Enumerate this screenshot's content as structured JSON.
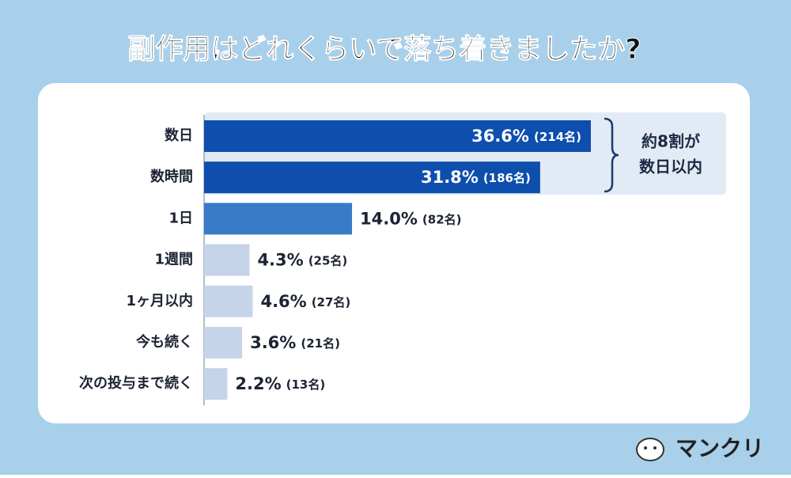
{
  "chart_data": {
    "type": "bar",
    "orientation": "horizontal",
    "title": "副作用はどれくらいで落ち着きましたか?",
    "categories": [
      "数日",
      "数時間",
      "1日",
      "1週間",
      "1ヶ月以内",
      "今も続く",
      "次の投与まで続く"
    ],
    "values": [
      36.6,
      31.8,
      14.0,
      4.3,
      4.6,
      3.6,
      2.2
    ],
    "value_labels": [
      "36.6%",
      "31.8%",
      "14.0%",
      "4.3%",
      "4.6%",
      "3.6%",
      "2.2%"
    ],
    "count_labels": [
      "(214名)",
      "(186名)",
      "(82名)",
      "(25名)",
      "(27名)",
      "(21名)",
      "(13名)"
    ],
    "colors": [
      "#0e4fae",
      "#0e4fae",
      "#3a7bc8",
      "#c6d4e9",
      "#c6d4e9",
      "#c6d4e9",
      "#c6d4e9"
    ],
    "annotation": [
      "約8割が",
      "数日以内"
    ]
  },
  "logo": "マンクリ"
}
